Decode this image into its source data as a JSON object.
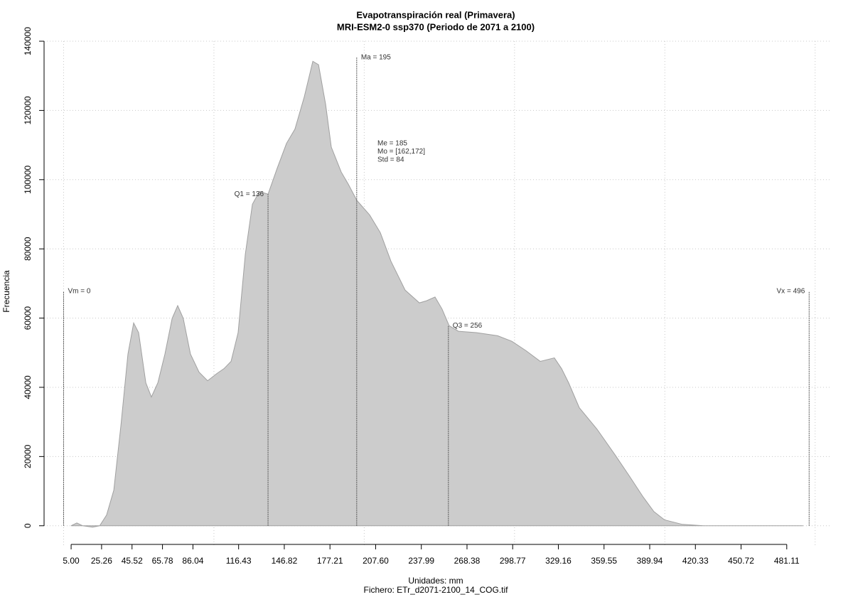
{
  "chart_data": {
    "type": "area",
    "title": "Evapotranspiración real (Primavera)",
    "subtitle": "MRI-ESM2-0 ssp370 (Periodo de 2071 a 2100)",
    "x_label": "Unidades: mm",
    "caption": "Fichero: ETr_d2071-2100_14_COG.tif",
    "y_label": "Frecuencia",
    "xlim": [
      -13,
      511
    ],
    "ylim": [
      -5800,
      140000
    ],
    "xticks": [
      {
        "value": 5,
        "label": "5.00"
      },
      25.26,
      45.52,
      65.78,
      86.04,
      116.43,
      146.82,
      177.21,
      {
        "value": 207.6,
        "label": "207.60"
      },
      237.99,
      268.38,
      298.77,
      329.16,
      359.55,
      389.94,
      420.33,
      450.72,
      481.11
    ],
    "xgrid": [
      0,
      100,
      200,
      300,
      400,
      500
    ],
    "yticks": [
      0,
      20000,
      40000,
      60000,
      80000,
      100000,
      120000,
      140000
    ],
    "grid": true,
    "series": [
      {
        "color": "#cccccc",
        "line_color": "#a0a0a0",
        "x": [
          5,
          8.8,
          12.6,
          19.2,
          24,
          28.6,
          33.4,
          38.1,
          42.8,
          46.6,
          49.9,
          54.7,
          58.4,
          62.7,
          67.4,
          72.2,
          75.9,
          79.6,
          84.4,
          90.1,
          95.8,
          102,
          106.7,
          111.4,
          116.1,
          120.9,
          125.6,
          130.3,
          136,
          142.1,
          148.3,
          153.9,
          160.1,
          165.8,
          169.6,
          174.3,
          178.1,
          184.7,
          189.4,
          195.1,
          203.6,
          210.7,
          217.8,
          227.2,
          236.7,
          241.4,
          247.1,
          251.8,
          256.5,
          262.7,
          274.5,
          288.7,
          298.2,
          307.6,
          317.1,
          326.5,
          331.3,
          336,
          343.1,
          354.9,
          366.7,
          376.2,
          385.6,
          392.7,
          399.8,
          411.6,
          425.8,
          492
        ],
        "values": [
          0,
          800,
          0,
          -400,
          0,
          3100,
          10300,
          28900,
          49600,
          58600,
          55800,
          41300,
          37200,
          41300,
          49600,
          59900,
          63600,
          59900,
          49600,
          44400,
          41900,
          44000,
          45400,
          47500,
          55800,
          78500,
          92900,
          96600,
          95800,
          103300,
          110500,
          114600,
          123900,
          134200,
          133200,
          121800,
          109400,
          102200,
          98700,
          94000,
          89800,
          84700,
          76400,
          68100,
          64400,
          65000,
          66100,
          62600,
          57800,
          56200,
          55800,
          54900,
          53300,
          50600,
          47500,
          48500,
          45400,
          41300,
          34100,
          27900,
          20600,
          14500,
          8300,
          4100,
          1700,
          400,
          0,
          0
        ]
      }
    ],
    "markers": [
      {
        "label": "Vm = 0",
        "x": 0,
        "y": 67700,
        "side": "right"
      },
      {
        "label": "Q1 = 136",
        "x": 136,
        "y": 95800,
        "side": "left"
      },
      {
        "label": "Ma = 195",
        "x": 195,
        "y": 135300,
        "side": "right"
      },
      {
        "label": "Q3 = 256",
        "x": 256,
        "y": 57800,
        "side": "right"
      },
      {
        "label": "Vx = 496",
        "x": 496,
        "y": 67700,
        "side": "left"
      }
    ],
    "stats_text": [
      "Me = 185",
      "Mo = [162,172]",
      "Std = 84"
    ]
  }
}
